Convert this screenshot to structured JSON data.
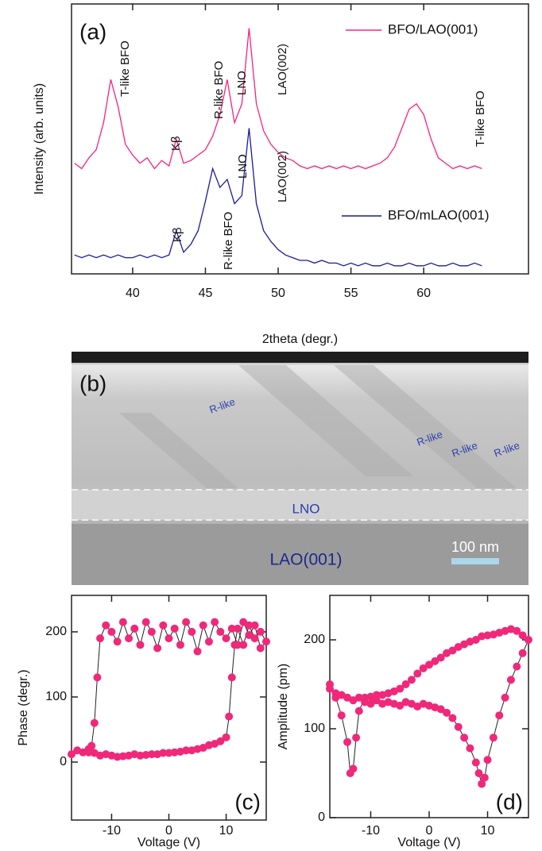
{
  "chart_data": [
    {
      "type": "line",
      "panel_label": "(a)",
      "xlabel": "2theta (degr.)",
      "ylabel": "Intensity (arb. units)",
      "x": [
        36,
        36.5,
        37,
        37.5,
        38,
        38.5,
        39,
        39.5,
        40,
        40.5,
        41,
        41.5,
        42,
        42.5,
        43,
        43.5,
        44,
        44.5,
        45,
        45.5,
        46,
        46.5,
        47,
        47.5,
        48,
        48.5,
        49,
        49.5,
        50,
        50.5,
        51,
        51.5,
        52,
        52.5,
        53,
        53.5,
        54,
        54.5,
        55,
        55.5,
        56,
        56.5,
        57,
        57.5,
        58,
        58.5,
        59,
        59.5,
        60,
        60.5,
        61,
        61.5,
        62,
        62.5,
        63,
        63.5,
        64
      ],
      "series": [
        {
          "name": "BFO/LAO(001)",
          "color": "#f5237f",
          "values": [
            4.1,
            3.9,
            4.3,
            4.6,
            5.6,
            7.2,
            6.2,
            4.8,
            4.4,
            4.1,
            4.3,
            3.9,
            4.2,
            4.0,
            5.0,
            4.1,
            4.2,
            4.4,
            4.6,
            5.1,
            5.9,
            7.2,
            5.6,
            6.3,
            9.1,
            6.3,
            5.3,
            4.8,
            4.5,
            4.3,
            4.2,
            4.0,
            3.9,
            4.0,
            3.9,
            4.0,
            3.9,
            4.0,
            3.9,
            4.0,
            3.9,
            4.0,
            4.1,
            4.3,
            4.7,
            5.4,
            6.1,
            6.3,
            5.9,
            5.0,
            4.3,
            4.1,
            3.9,
            4.0,
            3.9,
            4.0,
            3.9
          ]
        },
        {
          "name": "BFO/mLAO(001)",
          "color": "#1a1a9c",
          "values": [
            0.7,
            0.6,
            0.7,
            0.6,
            0.7,
            0.6,
            0.7,
            0.6,
            0.6,
            0.7,
            0.6,
            0.7,
            0.6,
            0.7,
            1.6,
            0.8,
            1.1,
            1.6,
            2.7,
            3.9,
            3.2,
            3.5,
            2.6,
            2.9,
            5.4,
            2.6,
            1.6,
            1.2,
            0.9,
            0.7,
            0.6,
            0.5,
            0.5,
            0.4,
            0.5,
            0.4,
            0.4,
            0.3,
            0.4,
            0.3,
            0.4,
            0.3,
            0.3,
            0.4,
            0.3,
            0.3,
            0.4,
            0.3,
            0.3,
            0.4,
            0.3,
            0.3,
            0.4,
            0.3,
            0.3,
            0.4,
            0.3
          ]
        }
      ],
      "xlim": [
        35.8,
        67.2
      ],
      "xticks": [
        40,
        45,
        50,
        55,
        60
      ],
      "ylim": [
        0,
        10
      ],
      "annotations": [
        "T-like BFO",
        "Kβ",
        "R-like BFO",
        "LNO",
        "LAO(002)",
        "T-like BFO",
        "Kβ",
        "R-like BFO",
        "LNO",
        "LAO(002)"
      ]
    },
    {
      "type": "scatter",
      "connect": true,
      "panel_label": "(c)",
      "xlabel": "Voltage (V)",
      "ylabel": "Phase (degr.)",
      "color": "#f0287a",
      "x": [
        -17,
        -16,
        -15,
        -14,
        -13,
        -12,
        -11,
        -10,
        -9,
        -8,
        -7,
        -6,
        -5,
        -4,
        -3,
        -2,
        -1,
        0,
        1,
        2,
        3,
        4,
        5,
        6,
        7,
        8,
        9,
        10,
        10.5,
        11,
        11.5,
        12,
        13,
        14,
        15,
        16,
        17,
        16,
        15,
        14,
        13,
        12,
        11,
        10,
        9,
        8,
        7,
        6,
        5,
        4,
        3,
        2,
        1,
        0,
        -1,
        -2,
        -3,
        -4,
        -5,
        -6,
        -7,
        -8,
        -9,
        -10,
        -11,
        -12,
        -12.5,
        -13,
        -13.5,
        -14
      ],
      "values": [
        12,
        18,
        15,
        20,
        14,
        10,
        12,
        10,
        8,
        9,
        10,
        12,
        10,
        11,
        12,
        12,
        14,
        14,
        15,
        16,
        18,
        18,
        20,
        22,
        26,
        28,
        32,
        38,
        70,
        130,
        180,
        205,
        180,
        210,
        190,
        200,
        185,
        175,
        210,
        195,
        215,
        180,
        205,
        190,
        200,
        215,
        185,
        210,
        170,
        200,
        215,
        180,
        205,
        190,
        210,
        175,
        200,
        215,
        180,
        205,
        190,
        215,
        185,
        200,
        210,
        190,
        130,
        60,
        25,
        15
      ],
      "xlim": [
        -17,
        17
      ],
      "xticks": [
        -10,
        0,
        10
      ],
      "ylim": [
        -89,
        256
      ],
      "yticks": [
        0,
        100,
        200
      ]
    },
    {
      "type": "scatter",
      "connect": true,
      "panel_label": "(d)",
      "xlabel": "Voltage (V)",
      "ylabel": "Amplitude (pm)",
      "color": "#f0287a",
      "x": [
        -17,
        -16,
        -15,
        -14,
        -13,
        -12,
        -11,
        -10,
        -9,
        -8,
        -7,
        -6,
        -5,
        -4,
        -3,
        -2,
        -1,
        0,
        1,
        2,
        3,
        4,
        5,
        6,
        7,
        8,
        8.5,
        9,
        9.5,
        10,
        11,
        12,
        13,
        14,
        15,
        16,
        17,
        16,
        15,
        14,
        13,
        12,
        11,
        10,
        9,
        8,
        7,
        6,
        5,
        4,
        3,
        2,
        1,
        0,
        -1,
        -2,
        -3,
        -4,
        -5,
        -6,
        -7,
        -8,
        -9,
        -10,
        -11,
        -12,
        -12.5,
        -13,
        -13.5,
        -14,
        -15,
        -16,
        -17
      ],
      "values": [
        145,
        140,
        138,
        135,
        132,
        135,
        130,
        128,
        132,
        128,
        130,
        128,
        126,
        130,
        128,
        125,
        128,
        126,
        124,
        122,
        118,
        112,
        102,
        90,
        78,
        62,
        50,
        38,
        45,
        65,
        90,
        115,
        135,
        155,
        170,
        185,
        200,
        205,
        210,
        212,
        210,
        208,
        206,
        205,
        204,
        200,
        198,
        195,
        192,
        188,
        185,
        180,
        176,
        172,
        168,
        162,
        155,
        150,
        145,
        142,
        140,
        138,
        138,
        136,
        135,
        120,
        90,
        55,
        50,
        85,
        115,
        135,
        150
      ],
      "xlim": [
        -17,
        17
      ],
      "xticks": [
        -10,
        0,
        10
      ],
      "ylim": [
        0,
        250
      ],
      "yticks": [
        0,
        100,
        200
      ]
    }
  ],
  "image_b": {
    "panel_label": "(b)",
    "labels": [
      "R-like",
      "R-like",
      "R-like",
      "R-like",
      "LNO",
      "LAO(001)"
    ],
    "scale_bar": "100 nm"
  }
}
